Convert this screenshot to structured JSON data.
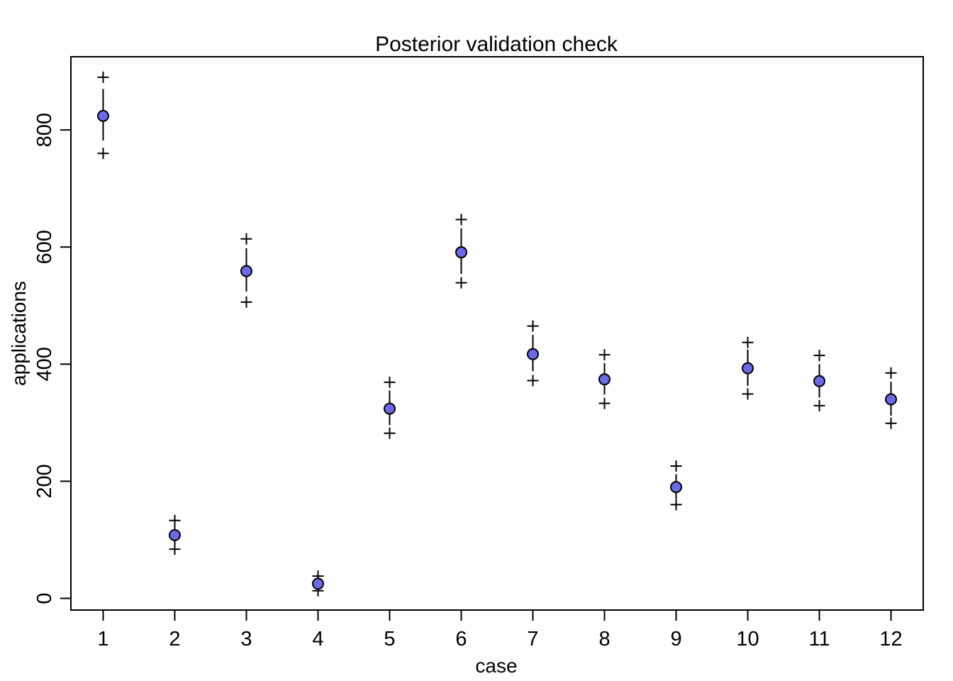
{
  "chart_data": {
    "type": "scatter",
    "title": "Posterior validation check",
    "xlabel": "case",
    "ylabel": "applications",
    "x_ticks": [
      "1",
      "2",
      "3",
      "4",
      "5",
      "6",
      "7",
      "8",
      "9",
      "10",
      "11",
      "12"
    ],
    "y_ticks": [
      "0",
      "200",
      "400",
      "600",
      "800"
    ],
    "xlim": [
      0.55,
      12.45
    ],
    "ylim": [
      -20,
      925
    ],
    "grid": false,
    "legend": "none",
    "series": [
      {
        "marker": "filled-circle",
        "color": "#6A6AE8",
        "x": [
          1,
          2,
          3,
          4,
          5,
          6,
          7,
          8,
          9,
          10,
          11,
          12
        ],
        "observed": [
          824,
          108,
          559,
          25,
          324,
          591,
          417,
          374,
          190,
          393,
          371,
          340
        ]
      },
      {
        "marker": "cross",
        "role": "interval-bounds",
        "x": [
          1,
          2,
          3,
          4,
          5,
          6,
          7,
          8,
          9,
          10,
          11,
          12
        ],
        "lower": [
          760,
          84,
          506,
          13,
          282,
          539,
          372,
          333,
          160,
          349,
          329,
          299
        ],
        "upper": [
          890,
          133,
          614,
          38,
          369,
          647,
          465,
          416,
          226,
          437,
          415,
          385
        ]
      },
      {
        "marker": "segment",
        "role": "inner-interval",
        "x": [
          1,
          2,
          3,
          4,
          5,
          6,
          7,
          8,
          9,
          10,
          11,
          12
        ],
        "lower": [
          782,
          92,
          524,
          17,
          296,
          554,
          388,
          348,
          170,
          363,
          343,
          312
        ],
        "upper": [
          870,
          125,
          598,
          33,
          355,
          632,
          450,
          402,
          212,
          425,
          400,
          370
        ]
      }
    ]
  }
}
